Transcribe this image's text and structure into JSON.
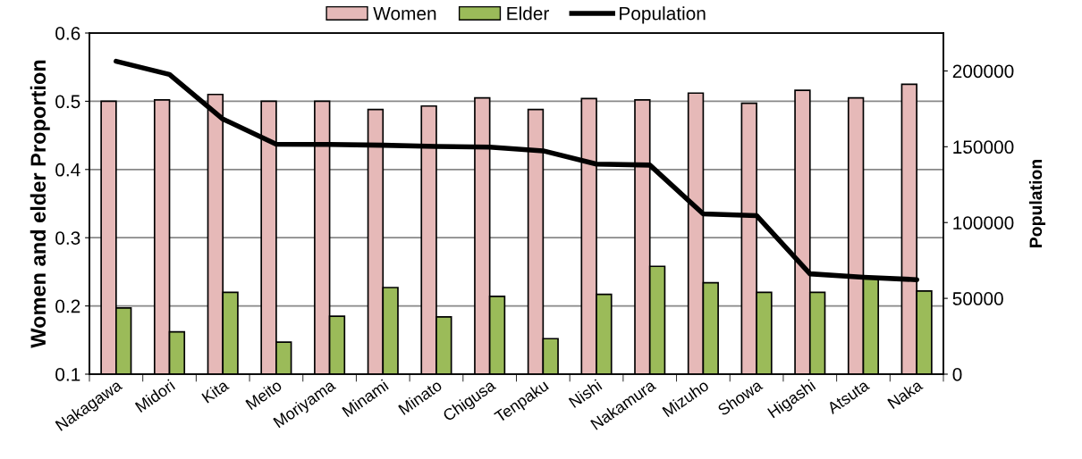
{
  "chart_data": {
    "type": "bar",
    "categories": [
      "Nakagawa",
      "Midori",
      "Kita",
      "Meito",
      "Moriyama",
      "Minami",
      "Minato",
      "Chigusa",
      "Tenpaku",
      "Nishi",
      "Nakamura",
      "Mizuho",
      "Showa",
      "Higashi",
      "Atsuta",
      "Naka"
    ],
    "series": [
      {
        "name": "Women",
        "color": "#e6b9b8",
        "values": [
          0.5,
          0.502,
          0.51,
          0.5,
          0.5,
          0.488,
          0.493,
          0.505,
          0.488,
          0.504,
          0.502,
          0.512,
          0.497,
          0.516,
          0.505,
          0.525
        ]
      },
      {
        "name": "Elder",
        "color": "#9bbb59",
        "values": [
          0.197,
          0.162,
          0.22,
          0.147,
          0.185,
          0.227,
          0.184,
          0.214,
          0.152,
          0.217,
          0.258,
          0.234,
          0.22,
          0.22,
          0.24,
          0.222
        ]
      },
      {
        "name": "Population",
        "type": "line",
        "axis": "y2",
        "color": "#000000",
        "values": [
          206400,
          197700,
          168300,
          151700,
          151500,
          151000,
          150200,
          149800,
          147300,
          138600,
          137900,
          105700,
          104600,
          66200,
          63900,
          62300
        ]
      }
    ],
    "ylabel": "Women and elder Proportion",
    "y2label": "Population",
    "ylim": [
      0.1,
      0.6
    ],
    "yticks": [
      0.1,
      0.2,
      0.3,
      0.4,
      0.5,
      0.6
    ],
    "y2lim": [
      0,
      225000
    ],
    "y2ticks": [
      0,
      50000,
      100000,
      150000,
      200000
    ],
    "grid": "y",
    "legend": "top",
    "marker": "none",
    "line_style": "solid"
  }
}
